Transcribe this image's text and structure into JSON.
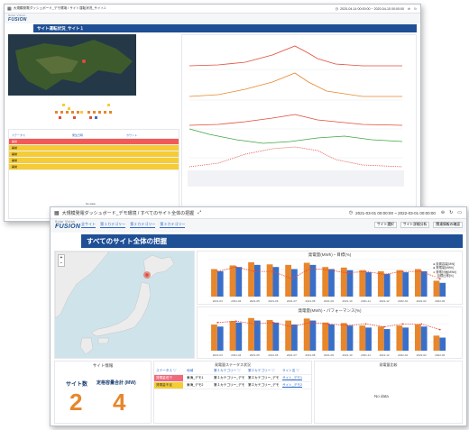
{
  "colors": {
    "accent": "#1f4f95",
    "orange": "#e8862b",
    "blue": "#3a6fc9",
    "red": "#e24b3b",
    "green": "#3fa544",
    "yellow": "#f5cc35",
    "pink": "#f06a7a"
  },
  "back_window": {
    "title": "大規模発電ダッシュボード_デモ環境 / サイト運転状況_サイト1",
    "time_range": "2020-04-14 00:00:00 ~ 2020-04-15 00:00:00",
    "logo": "FUSION",
    "logo_caption": "Solar Vision",
    "banner": "サイト運転状況_サイト１",
    "table_headers": [
      "ステータス",
      "発生日時",
      "カウント"
    ],
    "status_values": [
      "異常",
      "異常",
      "異常",
      "異常",
      "異常"
    ],
    "no_data": "No data"
  },
  "front_window": {
    "title": "大規模発電ダッシュボード_デモ環境 / すべてのサイト全体の把握",
    "time_range": "2021-03-01 00:00:00 ~ 2022-03-01 00:00:00",
    "toolbar_buttons": [
      "サイト選択",
      "サイト詳細分析",
      "関連情報の確認"
    ],
    "logo": "FUSION",
    "logo_caption": "Solar Vision",
    "tabs": [
      "全サイト",
      "第１カテゴリー",
      "第２カテゴリー",
      "第３カテゴリー"
    ],
    "banner": "すべてのサイト全体の把握",
    "chart1_title": "発電量(MWh)・目標(%)",
    "chart2_title": "発電量(MWh)・パフォーマンス(%)",
    "legend_items": [
      "設置容量[MW]",
      "発電量[MWh]",
      "発電計画[MWh]",
      "目標比率[%]"
    ],
    "site_info": {
      "title": "サイト情報",
      "site_count_label": "サイト数",
      "site_count": "2",
      "capacity_label": "定格容量合計 (MW)",
      "capacity": "4"
    },
    "status_panel": {
      "title": "発電量ステータス状況",
      "headers": [
        "ステータス ▽",
        "地域",
        "第１カテゴリー ▽",
        "第２カテゴリー ▽",
        "サイト名 ▽"
      ],
      "rows": [
        {
          "status": "発電量低下",
          "area": "東海_デモ1",
          "cat1": "第１カテゴリー_デモ",
          "cat2": "第２カテゴリー_デモ",
          "site": "サイト_デモ1"
        },
        {
          "status": "発電量不足",
          "area": "東海_デモ2",
          "cat1": "第１カテゴリー_デモ",
          "cat2": "第２カテゴリー_デモ",
          "site": "サイト_デモ2"
        }
      ]
    },
    "alarm_panel": {
      "title": "発電量比較",
      "no_data": "No data"
    }
  },
  "chart_data": [
    {
      "type": "bar",
      "title": "発電量(MWh)・目標(%)",
      "categories": [
        "2021-03",
        "2021-04",
        "2021-05",
        "2021-06",
        "2021-07",
        "2021-08",
        "2021-09",
        "2021-10",
        "2021-11",
        "2021-12",
        "2022-01",
        "2022-02",
        "2022-03"
      ],
      "series": [
        {
          "name": "発電計画[MWh]",
          "values": [
            520,
            590,
            650,
            610,
            600,
            640,
            560,
            550,
            500,
            480,
            500,
            520,
            300
          ]
        },
        {
          "name": "発電量[MWh]",
          "values": [
            480,
            560,
            600,
            560,
            520,
            600,
            520,
            500,
            460,
            430,
            460,
            480,
            260
          ]
        },
        {
          "name": "目標比率[%]",
          "values": [
            92,
            95,
            92,
            92,
            87,
            94,
            93,
            91,
            92,
            90,
            92,
            92,
            87
          ]
        }
      ]
    },
    {
      "type": "bar",
      "title": "発電量(MWh)・パフォーマンス(%)",
      "categories": [
        "2021-03",
        "2021-04",
        "2021-05",
        "2021-06",
        "2021-07",
        "2021-08",
        "2021-09",
        "2021-10",
        "2021-11",
        "2021-12",
        "2022-01",
        "2022-02",
        "2022-03"
      ],
      "series": [
        {
          "name": "発電計画[MWh]",
          "values": [
            520,
            590,
            650,
            610,
            600,
            640,
            560,
            550,
            500,
            480,
            500,
            520,
            300
          ]
        },
        {
          "name": "発電量[MWh]",
          "values": [
            480,
            560,
            600,
            560,
            520,
            600,
            520,
            500,
            460,
            430,
            460,
            480,
            260
          ]
        },
        {
          "name": "パフォーマンス[%]",
          "values": [
            95,
            96,
            94,
            95,
            92,
            95,
            94,
            93,
            94,
            92,
            94,
            94,
            90
          ]
        }
      ]
    }
  ]
}
